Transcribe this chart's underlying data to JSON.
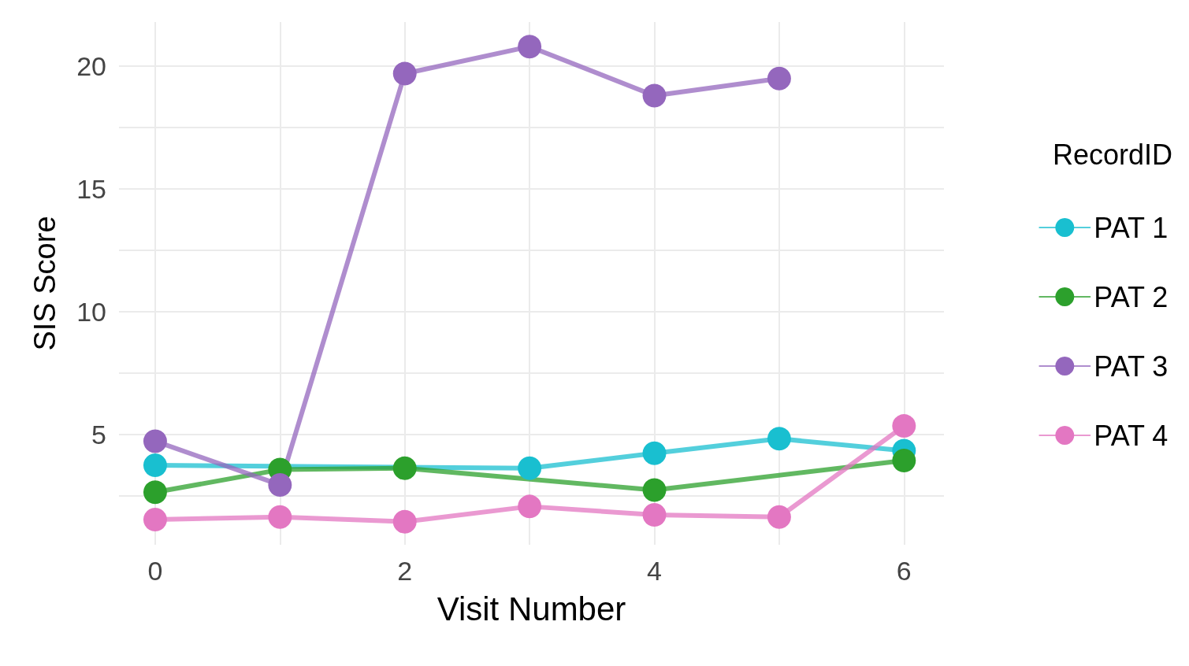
{
  "chart_data": {
    "type": "line",
    "xlabel": "Visit Number",
    "ylabel": "SIS Score",
    "legend_title": "RecordID",
    "legend": "right",
    "grid": true,
    "marker": "circle",
    "line_style": "solid",
    "xlim": [
      -0.29,
      6.32
    ],
    "xticks": [
      0,
      {
        "value": 1,
        "label": null
      },
      2,
      {
        "value": 3,
        "label": null
      },
      4,
      {
        "value": 5,
        "label": null
      },
      6
    ],
    "ylim": [
      0.5,
      21.8
    ],
    "yticks": [
      {
        "value": 2.5,
        "label": null
      },
      5,
      {
        "value": 7.5,
        "label": null
      },
      10,
      {
        "value": 12.5,
        "label": null
      },
      15,
      {
        "value": 17.5,
        "label": null
      },
      20
    ],
    "series": [
      {
        "name": "PAT 1",
        "color": "#19bfd0",
        "x": [
          0,
          1,
          2,
          3,
          4,
          5,
          6
        ],
        "values": [
          3.74,
          null,
          null,
          3.62,
          4.23,
          4.82,
          4.33
        ]
      },
      {
        "name": "PAT 2",
        "color": "#2ca02c",
        "x": [
          0,
          1,
          2,
          4,
          6
        ],
        "values": [
          2.64,
          3.56,
          3.62,
          2.73,
          3.93
        ]
      },
      {
        "name": "PAT 3",
        "color": "#9467bd",
        "x": [
          0,
          1,
          2,
          3,
          4,
          5
        ],
        "values": [
          4.72,
          2.94,
          19.7,
          20.8,
          18.8,
          19.5
        ]
      },
      {
        "name": "PAT 4",
        "color": "#e377c2",
        "x": [
          0,
          1,
          2,
          3,
          4,
          5,
          6
        ],
        "values": [
          1.53,
          1.63,
          1.44,
          2.06,
          1.72,
          1.63,
          5.34
        ]
      }
    ]
  }
}
